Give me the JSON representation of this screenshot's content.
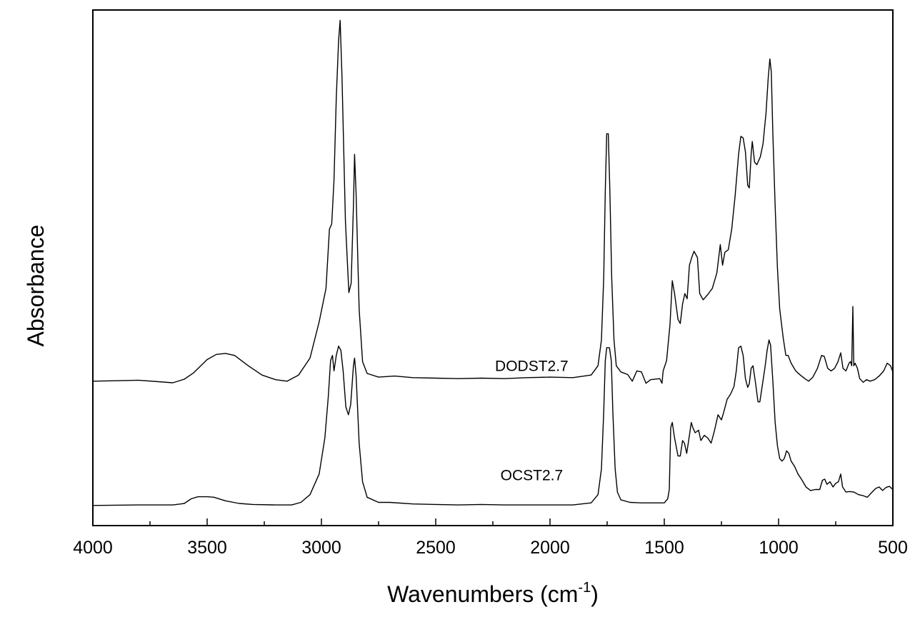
{
  "chart_data": {
    "type": "line",
    "xlabel": "Wavenumbers (cm",
    "xlabel_superscript": "-1",
    "xlabel_suffix": ")",
    "ylabel": "Absorbance",
    "xlim": [
      4000,
      500
    ],
    "x_reversed": true,
    "y_ticks_labeled": false,
    "ylim": [
      0,
      1
    ],
    "x_ticks": [
      {
        "value": 4000,
        "label": "4000"
      },
      {
        "value": 3500,
        "label": "3500"
      },
      {
        "value": 3000,
        "label": "3000"
      },
      {
        "value": 2500,
        "label": "2500"
      },
      {
        "value": 2000,
        "label": "2000"
      },
      {
        "value": 1500,
        "label": "1500"
      },
      {
        "value": 1000,
        "label": "1000"
      },
      {
        "value": 500,
        "label": "500"
      }
    ],
    "series": [
      {
        "name": "DODST2.7",
        "label_x": 2080,
        "label_y": 0.3,
        "points": [
          [
            4000,
            0.28
          ],
          [
            3800,
            0.282
          ],
          [
            3650,
            0.277
          ],
          [
            3600,
            0.284
          ],
          [
            3560,
            0.296
          ],
          [
            3500,
            0.322
          ],
          [
            3460,
            0.332
          ],
          [
            3420,
            0.334
          ],
          [
            3380,
            0.33
          ],
          [
            3320,
            0.31
          ],
          [
            3260,
            0.292
          ],
          [
            3200,
            0.283
          ],
          [
            3150,
            0.28
          ],
          [
            3100,
            0.292
          ],
          [
            3050,
            0.325
          ],
          [
            3010,
            0.395
          ],
          [
            2980,
            0.46
          ],
          [
            2965,
            0.575
          ],
          [
            2955,
            0.585
          ],
          [
            2945,
            0.67
          ],
          [
            2935,
            0.83
          ],
          [
            2925,
            0.94
          ],
          [
            2918,
            0.98
          ],
          [
            2910,
            0.87
          ],
          [
            2895,
            0.59
          ],
          [
            2880,
            0.452
          ],
          [
            2870,
            0.47
          ],
          [
            2860,
            0.62
          ],
          [
            2855,
            0.72
          ],
          [
            2848,
            0.64
          ],
          [
            2835,
            0.42
          ],
          [
            2820,
            0.318
          ],
          [
            2800,
            0.295
          ],
          [
            2750,
            0.288
          ],
          [
            2680,
            0.29
          ],
          [
            2600,
            0.287
          ],
          [
            2500,
            0.286
          ],
          [
            2400,
            0.285
          ],
          [
            2300,
            0.286
          ],
          [
            2200,
            0.285
          ],
          [
            2100,
            0.287
          ],
          [
            2000,
            0.288
          ],
          [
            1900,
            0.287
          ],
          [
            1820,
            0.292
          ],
          [
            1790,
            0.31
          ],
          [
            1775,
            0.36
          ],
          [
            1765,
            0.48
          ],
          [
            1758,
            0.65
          ],
          [
            1752,
            0.76
          ],
          [
            1745,
            0.76
          ],
          [
            1738,
            0.65
          ],
          [
            1730,
            0.48
          ],
          [
            1720,
            0.36
          ],
          [
            1710,
            0.31
          ],
          [
            1690,
            0.298
          ],
          [
            1660,
            0.293
          ],
          [
            1640,
            0.28
          ],
          [
            1620,
            0.3
          ],
          [
            1600,
            0.298
          ],
          [
            1580,
            0.276
          ],
          [
            1560,
            0.283
          ],
          [
            1520,
            0.285
          ],
          [
            1510,
            0.276
          ],
          [
            1505,
            0.3
          ],
          [
            1490,
            0.32
          ],
          [
            1475,
            0.39
          ],
          [
            1465,
            0.475
          ],
          [
            1455,
            0.45
          ],
          [
            1440,
            0.4
          ],
          [
            1430,
            0.392
          ],
          [
            1420,
            0.43
          ],
          [
            1410,
            0.45
          ],
          [
            1400,
            0.44
          ],
          [
            1390,
            0.505
          ],
          [
            1380,
            0.52
          ],
          [
            1370,
            0.532
          ],
          [
            1355,
            0.52
          ],
          [
            1345,
            0.45
          ],
          [
            1330,
            0.438
          ],
          [
            1310,
            0.448
          ],
          [
            1290,
            0.46
          ],
          [
            1270,
            0.49
          ],
          [
            1255,
            0.545
          ],
          [
            1245,
            0.505
          ],
          [
            1235,
            0.53
          ],
          [
            1220,
            0.535
          ],
          [
            1205,
            0.575
          ],
          [
            1190,
            0.64
          ],
          [
            1175,
            0.72
          ],
          [
            1165,
            0.755
          ],
          [
            1155,
            0.752
          ],
          [
            1145,
            0.725
          ],
          [
            1135,
            0.66
          ],
          [
            1128,
            0.655
          ],
          [
            1120,
            0.72
          ],
          [
            1115,
            0.745
          ],
          [
            1105,
            0.705
          ],
          [
            1095,
            0.7
          ],
          [
            1080,
            0.715
          ],
          [
            1068,
            0.74
          ],
          [
            1055,
            0.8
          ],
          [
            1045,
            0.87
          ],
          [
            1038,
            0.905
          ],
          [
            1032,
            0.88
          ],
          [
            1025,
            0.76
          ],
          [
            1015,
            0.62
          ],
          [
            1005,
            0.5
          ],
          [
            995,
            0.42
          ],
          [
            980,
            0.365
          ],
          [
            968,
            0.33
          ],
          [
            958,
            0.33
          ],
          [
            945,
            0.315
          ],
          [
            925,
            0.3
          ],
          [
            905,
            0.292
          ],
          [
            885,
            0.285
          ],
          [
            868,
            0.28
          ],
          [
            850,
            0.288
          ],
          [
            830,
            0.305
          ],
          [
            812,
            0.33
          ],
          [
            800,
            0.328
          ],
          [
            785,
            0.305
          ],
          [
            770,
            0.3
          ],
          [
            755,
            0.305
          ],
          [
            740,
            0.318
          ],
          [
            728,
            0.335
          ],
          [
            718,
            0.305
          ],
          [
            705,
            0.3
          ],
          [
            692,
            0.315
          ],
          [
            685,
            0.318
          ],
          [
            680,
            0.31
          ],
          [
            675,
            0.425
          ],
          [
            671,
            0.31
          ],
          [
            665,
            0.315
          ],
          [
            655,
            0.305
          ],
          [
            645,
            0.285
          ],
          [
            630,
            0.278
          ],
          [
            615,
            0.283
          ],
          [
            600,
            0.28
          ],
          [
            580,
            0.283
          ],
          [
            560,
            0.29
          ],
          [
            540,
            0.3
          ],
          [
            525,
            0.315
          ],
          [
            510,
            0.31
          ],
          [
            500,
            0.298
          ]
        ]
      },
      {
        "name": "OCST2.7",
        "label_x": 2080,
        "label_y": 0.088,
        "points": [
          [
            4000,
            0.039
          ],
          [
            3800,
            0.04
          ],
          [
            3650,
            0.04
          ],
          [
            3600,
            0.043
          ],
          [
            3570,
            0.052
          ],
          [
            3540,
            0.056
          ],
          [
            3500,
            0.056
          ],
          [
            3470,
            0.055
          ],
          [
            3420,
            0.048
          ],
          [
            3360,
            0.043
          ],
          [
            3300,
            0.041
          ],
          [
            3200,
            0.04
          ],
          [
            3130,
            0.04
          ],
          [
            3090,
            0.045
          ],
          [
            3050,
            0.06
          ],
          [
            3010,
            0.1
          ],
          [
            2985,
            0.17
          ],
          [
            2970,
            0.25
          ],
          [
            2960,
            0.32
          ],
          [
            2952,
            0.33
          ],
          [
            2945,
            0.3
          ],
          [
            2935,
            0.33
          ],
          [
            2925,
            0.348
          ],
          [
            2915,
            0.34
          ],
          [
            2905,
            0.3
          ],
          [
            2893,
            0.23
          ],
          [
            2882,
            0.215
          ],
          [
            2872,
            0.235
          ],
          [
            2860,
            0.31
          ],
          [
            2855,
            0.325
          ],
          [
            2848,
            0.29
          ],
          [
            2835,
            0.16
          ],
          [
            2820,
            0.085
          ],
          [
            2800,
            0.055
          ],
          [
            2750,
            0.045
          ],
          [
            2700,
            0.045
          ],
          [
            2600,
            0.042
          ],
          [
            2500,
            0.041
          ],
          [
            2400,
            0.04
          ],
          [
            2300,
            0.041
          ],
          [
            2200,
            0.04
          ],
          [
            2100,
            0.04
          ],
          [
            2000,
            0.04
          ],
          [
            1900,
            0.04
          ],
          [
            1820,
            0.044
          ],
          [
            1790,
            0.06
          ],
          [
            1775,
            0.11
          ],
          [
            1765,
            0.22
          ],
          [
            1758,
            0.32
          ],
          [
            1752,
            0.345
          ],
          [
            1740,
            0.345
          ],
          [
            1732,
            0.32
          ],
          [
            1725,
            0.22
          ],
          [
            1715,
            0.11
          ],
          [
            1705,
            0.065
          ],
          [
            1690,
            0.05
          ],
          [
            1650,
            0.045
          ],
          [
            1600,
            0.044
          ],
          [
            1550,
            0.044
          ],
          [
            1500,
            0.044
          ],
          [
            1485,
            0.052
          ],
          [
            1478,
            0.07
          ],
          [
            1472,
            0.19
          ],
          [
            1465,
            0.2
          ],
          [
            1455,
            0.17
          ],
          [
            1440,
            0.135
          ],
          [
            1430,
            0.135
          ],
          [
            1420,
            0.165
          ],
          [
            1412,
            0.16
          ],
          [
            1402,
            0.14
          ],
          [
            1390,
            0.175
          ],
          [
            1382,
            0.2
          ],
          [
            1375,
            0.19
          ],
          [
            1365,
            0.18
          ],
          [
            1350,
            0.185
          ],
          [
            1340,
            0.165
          ],
          [
            1325,
            0.175
          ],
          [
            1310,
            0.17
          ],
          [
            1295,
            0.16
          ],
          [
            1280,
            0.185
          ],
          [
            1265,
            0.215
          ],
          [
            1250,
            0.205
          ],
          [
            1240,
            0.22
          ],
          [
            1225,
            0.245
          ],
          [
            1210,
            0.255
          ],
          [
            1195,
            0.27
          ],
          [
            1185,
            0.3
          ],
          [
            1175,
            0.345
          ],
          [
            1165,
            0.348
          ],
          [
            1155,
            0.33
          ],
          [
            1145,
            0.285
          ],
          [
            1135,
            0.268
          ],
          [
            1128,
            0.275
          ],
          [
            1120,
            0.305
          ],
          [
            1112,
            0.31
          ],
          [
            1102,
            0.28
          ],
          [
            1090,
            0.24
          ],
          [
            1082,
            0.24
          ],
          [
            1072,
            0.27
          ],
          [
            1060,
            0.305
          ],
          [
            1050,
            0.34
          ],
          [
            1042,
            0.36
          ],
          [
            1035,
            0.35
          ],
          [
            1025,
            0.28
          ],
          [
            1015,
            0.2
          ],
          [
            1005,
            0.155
          ],
          [
            995,
            0.13
          ],
          [
            985,
            0.125
          ],
          [
            975,
            0.13
          ],
          [
            965,
            0.145
          ],
          [
            955,
            0.14
          ],
          [
            945,
            0.125
          ],
          [
            930,
            0.115
          ],
          [
            915,
            0.1
          ],
          [
            900,
            0.09
          ],
          [
            880,
            0.075
          ],
          [
            860,
            0.068
          ],
          [
            840,
            0.07
          ],
          [
            820,
            0.07
          ],
          [
            808,
            0.088
          ],
          [
            798,
            0.09
          ],
          [
            788,
            0.08
          ],
          [
            775,
            0.085
          ],
          [
            762,
            0.075
          ],
          [
            750,
            0.082
          ],
          [
            738,
            0.085
          ],
          [
            728,
            0.1
          ],
          [
            720,
            0.075
          ],
          [
            705,
            0.065
          ],
          [
            690,
            0.066
          ],
          [
            670,
            0.065
          ],
          [
            650,
            0.06
          ],
          [
            630,
            0.058
          ],
          [
            612,
            0.055
          ],
          [
            595,
            0.063
          ],
          [
            575,
            0.072
          ],
          [
            560,
            0.075
          ],
          [
            545,
            0.068
          ],
          [
            530,
            0.074
          ],
          [
            515,
            0.076
          ],
          [
            500,
            0.07
          ]
        ]
      }
    ]
  }
}
